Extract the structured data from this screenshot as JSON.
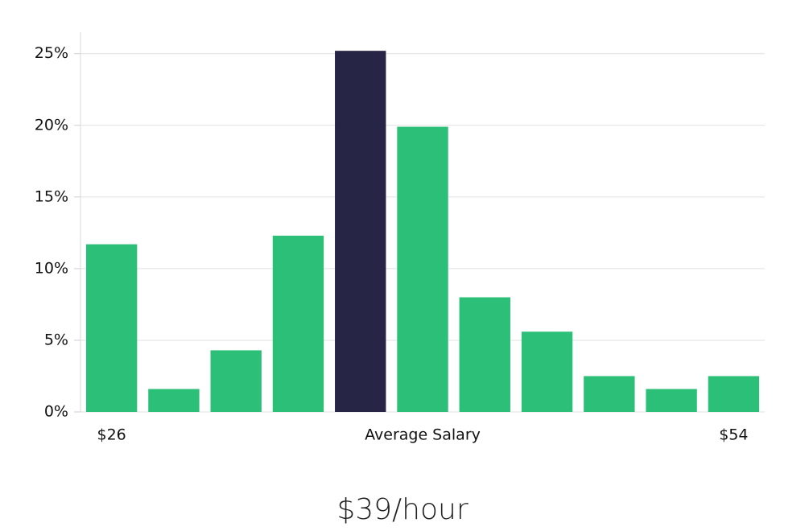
{
  "chart_data": {
    "type": "bar",
    "categories": [
      "$26",
      null,
      null,
      null,
      null,
      "Average Salary",
      null,
      null,
      null,
      null,
      "$54"
    ],
    "values": [
      11.7,
      1.6,
      4.3,
      12.3,
      25.2,
      19.9,
      8.0,
      5.6,
      2.5,
      1.6,
      2.5
    ],
    "colors": [
      "#2bbf78",
      "#2bbf78",
      "#2bbf78",
      "#2bbf78",
      "#272546",
      "#2bbf78",
      "#2bbf78",
      "#2bbf78",
      "#2bbf78",
      "#2bbf78",
      "#2bbf78"
    ],
    "ylim": [
      0,
      26.5
    ],
    "yticks": [
      {
        "value": 0,
        "label": "0%"
      },
      {
        "value": 5,
        "label": "5%"
      },
      {
        "value": 10,
        "label": "10%"
      },
      {
        "value": 15,
        "label": "15%"
      },
      {
        "value": 20,
        "label": "20%"
      },
      {
        "value": 25,
        "label": "25%"
      }
    ],
    "grid": true,
    "footer": "$39/hour"
  }
}
